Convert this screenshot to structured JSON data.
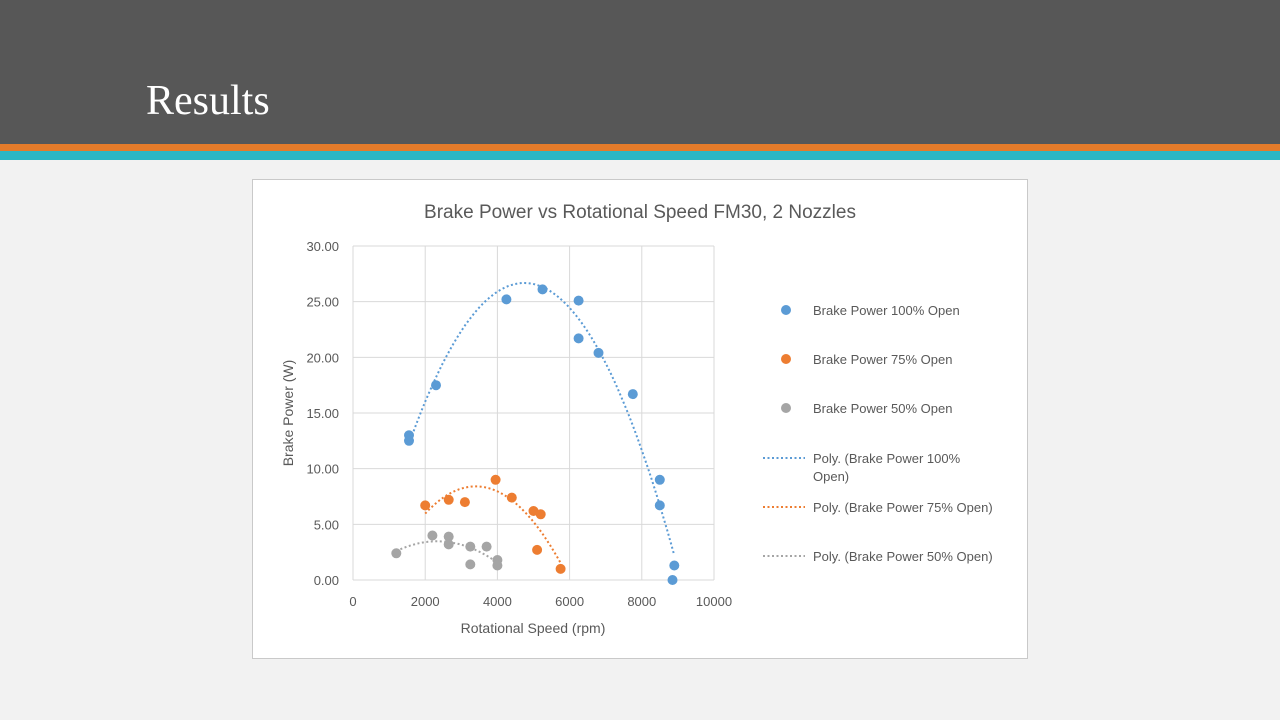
{
  "slide": {
    "title": "Results"
  },
  "colors": {
    "s100": "#5b9bd5",
    "s75": "#ed7d31",
    "s50": "#a5a5a5"
  },
  "chart_data": {
    "type": "scatter",
    "title": "Brake Power vs Rotational Speed FM30, 2 Nozzles",
    "xlabel": "Rotational Speed (rpm)",
    "ylabel": "Brake Power (W)",
    "xlim": [
      0,
      10000
    ],
    "ylim": [
      0,
      30
    ],
    "xticks": [
      "0",
      "2000",
      "4000",
      "6000",
      "8000",
      "10000"
    ],
    "yticks": [
      "0.00",
      "5.00",
      "10.00",
      "15.00",
      "20.00",
      "25.00",
      "30.00"
    ],
    "grid": "vertical and horizontal",
    "legend_position": "right",
    "series": [
      {
        "name": "Brake Power 100% Open",
        "color": "#5b9bd5",
        "points": [
          [
            1550,
            13.0
          ],
          [
            1550,
            12.5
          ],
          [
            2300,
            17.5
          ],
          [
            4250,
            25.2
          ],
          [
            5250,
            26.1
          ],
          [
            6250,
            25.1
          ],
          [
            6250,
            21.7
          ],
          [
            6800,
            20.4
          ],
          [
            7750,
            16.7
          ],
          [
            8500,
            9.0
          ],
          [
            8500,
            6.7
          ],
          [
            8900,
            1.3
          ],
          [
            8850,
            0.0
          ]
        ]
      },
      {
        "name": "Brake Power 75% Open",
        "color": "#ed7d31",
        "points": [
          [
            2000,
            6.7
          ],
          [
            2650,
            7.2
          ],
          [
            3100,
            7.0
          ],
          [
            3950,
            9.0
          ],
          [
            4400,
            7.4
          ],
          [
            5000,
            6.2
          ],
          [
            5200,
            5.9
          ],
          [
            5100,
            2.7
          ],
          [
            5750,
            1.0
          ]
        ]
      },
      {
        "name": "Brake Power 50% Open",
        "color": "#a5a5a5",
        "points": [
          [
            1200,
            2.4
          ],
          [
            2200,
            4.0
          ],
          [
            2650,
            3.9
          ],
          [
            2650,
            3.2
          ],
          [
            3250,
            3.0
          ],
          [
            3250,
            1.4
          ],
          [
            3700,
            3.0
          ],
          [
            4000,
            1.8
          ],
          [
            4000,
            1.3
          ]
        ]
      }
    ],
    "trendlines": [
      {
        "name": "Poly. (Brake Power 100% Open)",
        "color": "#5b9bd5",
        "type": "polynomial",
        "x_range": [
          1550,
          8900
        ]
      },
      {
        "name": "Poly. (Brake Power 75% Open)",
        "color": "#ed7d31",
        "type": "polynomial",
        "x_range": [
          2000,
          5750
        ]
      },
      {
        "name": "Poly. (Brake Power 50% Open)",
        "color": "#a5a5a5",
        "type": "polynomial",
        "x_range": [
          1200,
          4000
        ]
      }
    ]
  },
  "legend": [
    {
      "label": "Brake Power 100% Open",
      "kind": "marker",
      "color": "#5b9bd5"
    },
    {
      "label": "Brake Power 75% Open",
      "kind": "marker",
      "color": "#ed7d31"
    },
    {
      "label": "Brake Power 50% Open",
      "kind": "marker",
      "color": "#a5a5a5"
    },
    {
      "label": "Poly. (Brake Power 100%",
      "label2": "Open)",
      "kind": "line",
      "color": "#5b9bd5"
    },
    {
      "label": "Poly. (Brake Power 75% Open)",
      "kind": "line",
      "color": "#ed7d31"
    },
    {
      "label": "Poly. (Brake Power 50% Open)",
      "kind": "line",
      "color": "#a5a5a5"
    }
  ]
}
